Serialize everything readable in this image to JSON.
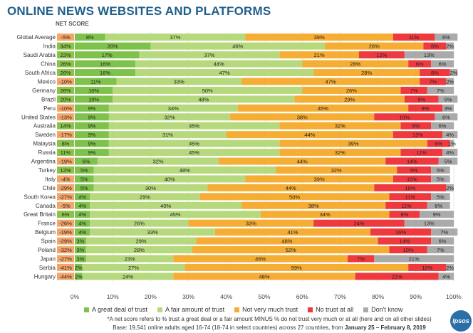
{
  "title": "ONLINE NEWS WEBSITES AND PLATFORMS",
  "net_score_label": "NET SCORE",
  "colors": {
    "great_deal": "#7fc24b",
    "fair_amount": "#b6d97d",
    "not_very_much": "#f5ad33",
    "no_trust": "#ee3a3f",
    "dont_know": "#aaaaaa",
    "net_positive": "#8bc34a",
    "net_negative": "#f4a56a",
    "title": "#1f5f8a"
  },
  "legend": {
    "great_deal": "A great deal of trust",
    "fair_amount": "A fair amount of trust",
    "not_very_much": "Not very much trust",
    "no_trust": "No trust at all",
    "dont_know": "Don't know"
  },
  "footnote": "*A net score refers to % trust a great deal or a fair amount MINUS % do not trust very much or at all (here and on all other slides)",
  "base_prefix": "Base: 19,541 online adults aged 16-74 (18-74 in select countries) across 27 countries, from ",
  "base_dates": "January 25 – February 8, 2019",
  "logo_text": "Ipsos",
  "chart_data": {
    "type": "bar",
    "orientation": "horizontal",
    "stacked": true,
    "xlim": [
      0,
      100
    ],
    "x_ticks": [
      "0%",
      "10%",
      "20%",
      "30%",
      "40%",
      "50%",
      "60%",
      "70%",
      "80%",
      "90%",
      "100%"
    ],
    "categories": [
      "Global Average",
      "India",
      "Saudi Arabia",
      "China",
      "South Africa",
      "Mexico",
      "Germany",
      "Brazil",
      "Peru",
      "United States",
      "Australia",
      "Sweden",
      "Malaysia",
      "Russia",
      "Argentina",
      "Turkey",
      "Italy",
      "Chile",
      "South Korea",
      "Canada",
      "Great Britain",
      "France",
      "Belgium",
      "Spain",
      "Poland",
      "Japan",
      "Serbia",
      "Hungary"
    ],
    "net_score": [
      "-5%",
      "34%",
      "22%",
      "26%",
      "26%",
      "-10%",
      "26%",
      "20%",
      "-10%",
      "-13%",
      "14%",
      "-17%",
      "8%",
      "11%",
      "-19%",
      "12%",
      "-4%",
      "-29%",
      "-27%",
      "-5%",
      "6%",
      "-26%",
      "-19%",
      "-29%",
      "-32%",
      "-27%",
      "-41%",
      "-44%"
    ],
    "series": [
      {
        "name": "A great deal of trust",
        "values": [
          8,
          20,
          17,
          16,
          16,
          11,
          10,
          10,
          9,
          9,
          9,
          9,
          9,
          9,
          6,
          5,
          5,
          5,
          4,
          4,
          4,
          4,
          4,
          3,
          3,
          3,
          2,
          2
        ]
      },
      {
        "name": "A fair amount of trust",
        "values": [
          37,
          46,
          37,
          44,
          47,
          33,
          50,
          48,
          34,
          32,
          45,
          31,
          45,
          45,
          32,
          48,
          40,
          30,
          29,
          40,
          45,
          26,
          33,
          29,
          28,
          23,
          27,
          24
        ]
      },
      {
        "name": "Not very much trust",
        "values": [
          39,
          26,
          21,
          28,
          28,
          47,
          26,
          29,
          45,
          38,
          32,
          44,
          39,
          32,
          44,
          32,
          39,
          44,
          50,
          38,
          34,
          33,
          41,
          48,
          52,
          46,
          59,
          48
        ]
      },
      {
        "name": "No trust at all",
        "values": [
          11,
          6,
          12,
          6,
          8,
          7,
          7,
          9,
          9,
          16,
          8,
          13,
          6,
          11,
          14,
          9,
          10,
          19,
          11,
          11,
          8,
          24,
          16,
          14,
          10,
          7,
          10,
          22
        ]
      },
      {
        "name": "Don't know",
        "values": [
          6,
          2,
          13,
          6,
          2,
          2,
          7,
          5,
          3,
          6,
          6,
          4,
          1,
          4,
          5,
          5,
          5,
          2,
          5,
          6,
          9,
          13,
          7,
          6,
          7,
          21,
          2,
          4
        ]
      }
    ]
  }
}
